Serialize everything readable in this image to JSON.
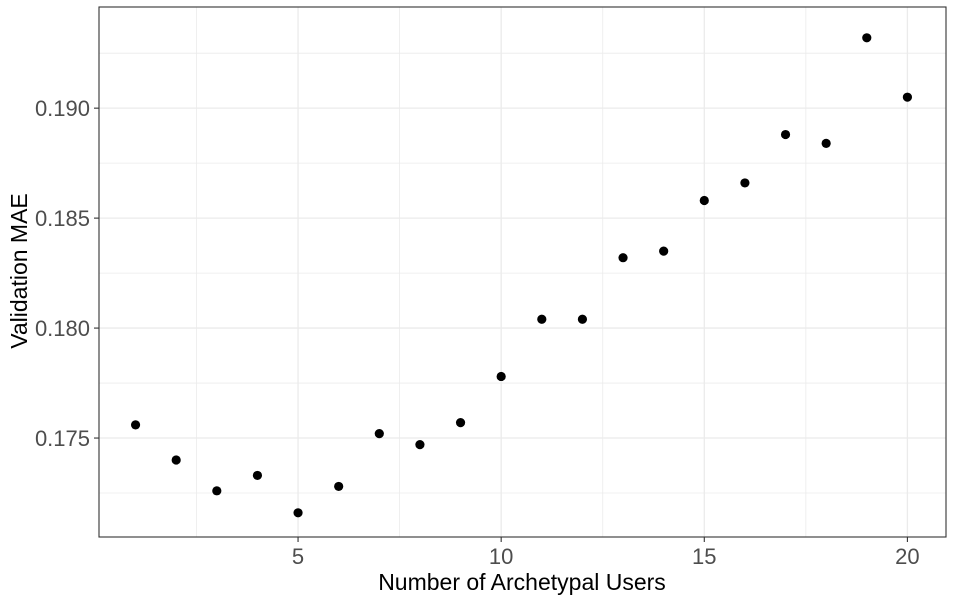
{
  "chart_data": {
    "type": "scatter",
    "xlabel": "Number of Archetypal Users",
    "ylabel": "Validation MAE",
    "xlim": [
      0.1,
      20.95
    ],
    "ylim": [
      0.1705,
      0.1946
    ],
    "x_ticks": [
      5,
      10,
      15,
      20
    ],
    "x_tick_labels": [
      "5",
      "10",
      "15",
      "20"
    ],
    "y_ticks": [
      0.175,
      0.18,
      0.185,
      0.19
    ],
    "y_tick_labels": [
      "0.175",
      "0.180",
      "0.185",
      "0.190"
    ],
    "x_minor_ticks": [
      2.5,
      7.5,
      12.5,
      17.5
    ],
    "y_minor_ticks": [
      0.1725,
      0.1775,
      0.1825,
      0.1875,
      0.1925
    ],
    "grid": true,
    "legend": "none",
    "colors": {
      "point": "#000000",
      "grid": "#ebebeb",
      "panel_border": "#333333",
      "tick_text": "#4d4d4d"
    },
    "points": [
      {
        "x": 1,
        "y": 0.1756
      },
      {
        "x": 2,
        "y": 0.174
      },
      {
        "x": 3,
        "y": 0.1726
      },
      {
        "x": 4,
        "y": 0.1733
      },
      {
        "x": 5,
        "y": 0.1716
      },
      {
        "x": 6,
        "y": 0.1728
      },
      {
        "x": 7,
        "y": 0.1752
      },
      {
        "x": 8,
        "y": 0.1747
      },
      {
        "x": 9,
        "y": 0.1757
      },
      {
        "x": 10,
        "y": 0.1778
      },
      {
        "x": 11,
        "y": 0.1804
      },
      {
        "x": 12,
        "y": 0.1804
      },
      {
        "x": 13,
        "y": 0.1832
      },
      {
        "x": 14,
        "y": 0.1835
      },
      {
        "x": 15,
        "y": 0.1858
      },
      {
        "x": 16,
        "y": 0.1866
      },
      {
        "x": 17,
        "y": 0.1888
      },
      {
        "x": 18,
        "y": 0.1884
      },
      {
        "x": 19,
        "y": 0.1932
      },
      {
        "x": 20,
        "y": 0.1905
      }
    ]
  }
}
